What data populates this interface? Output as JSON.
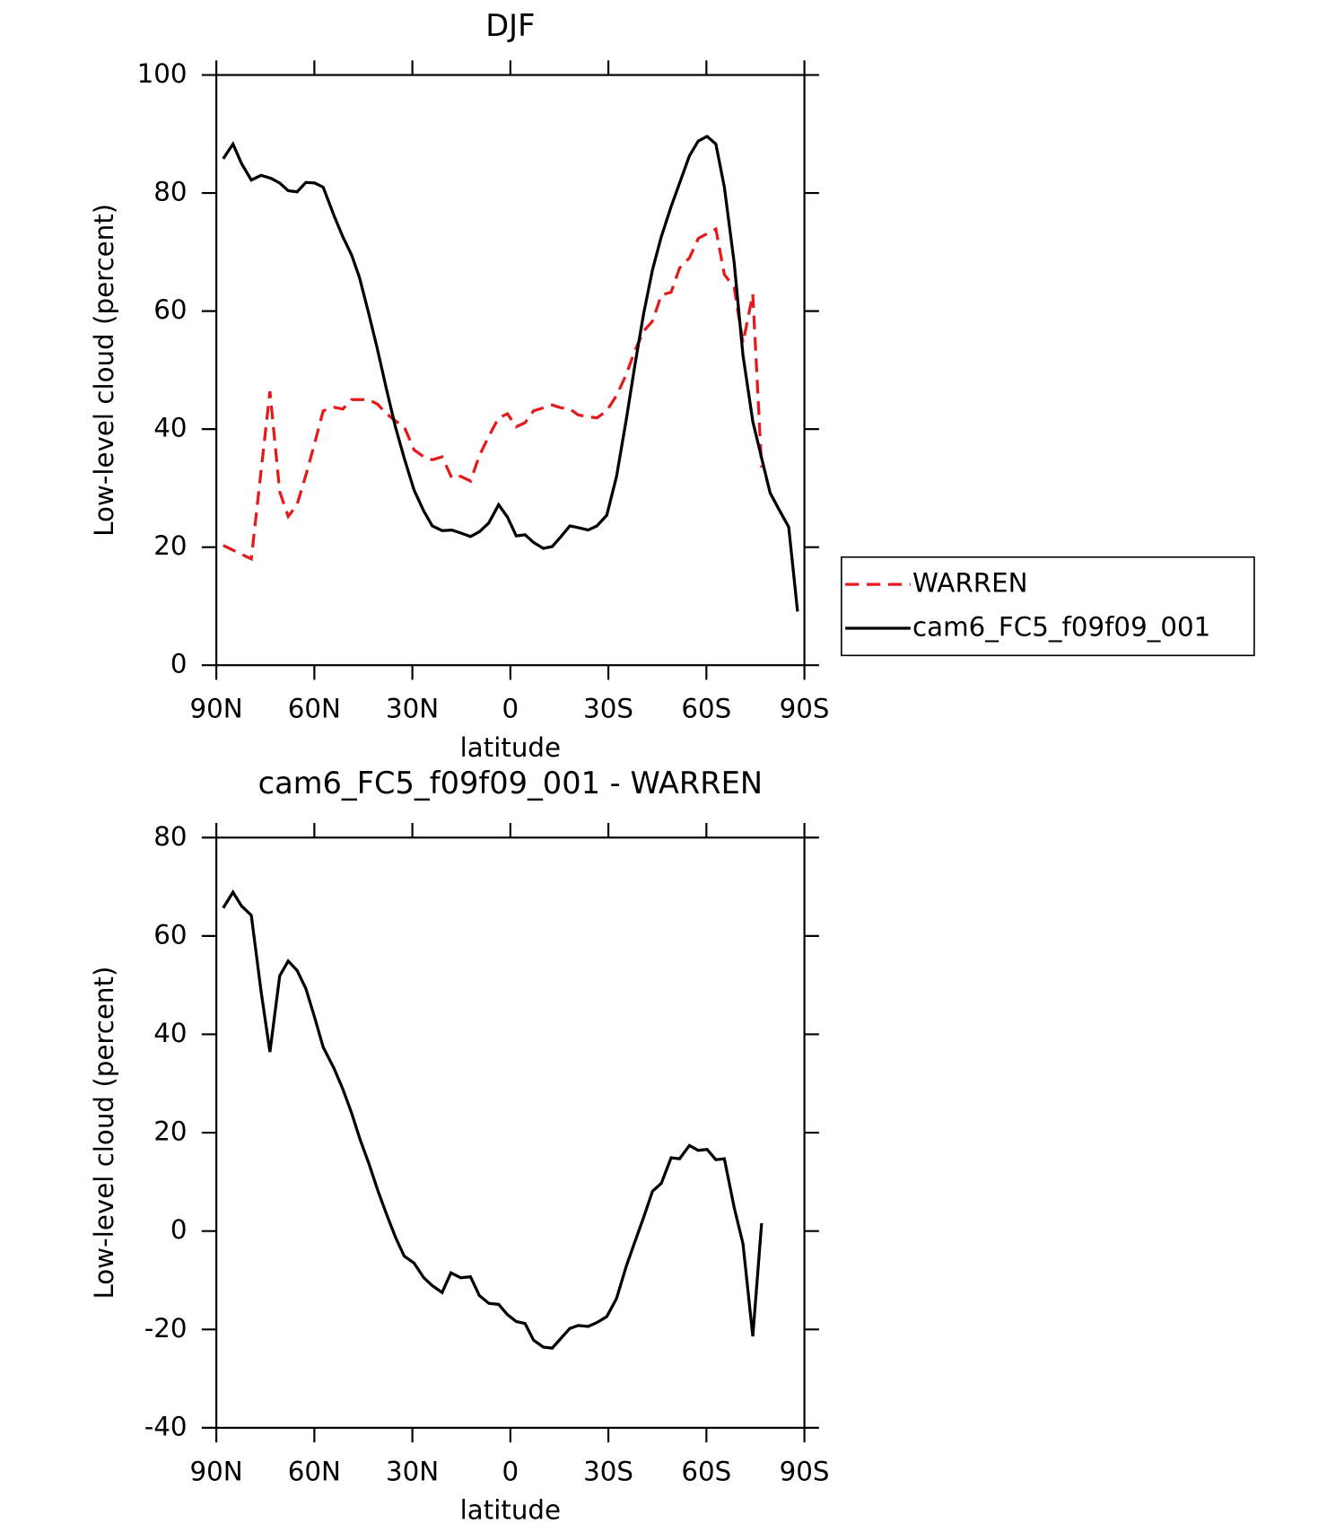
{
  "chart_data": [
    {
      "type": "line",
      "title": "DJF",
      "xlabel": "latitude",
      "ylabel": "Low-level cloud (percent)",
      "xlim": [
        90,
        -90
      ],
      "xticks": [
        {
          "value": 90,
          "label": "90N"
        },
        {
          "value": 60,
          "label": "60N"
        },
        {
          "value": 30,
          "label": "30N"
        },
        0,
        {
          "value": -30,
          "label": "30S"
        },
        {
          "value": -60,
          "label": "60S"
        },
        {
          "value": -90,
          "label": "90S"
        }
      ],
      "ylim": [
        0,
        100
      ],
      "yticks": [
        0,
        20,
        40,
        60,
        80,
        100
      ],
      "legend": "outside right",
      "series": [
        {
          "name": "WARREN",
          "color": "#e41a1c",
          "linestyle": "dashed",
          "x": [
            87.9,
            79.3,
            73.6,
            70.6,
            68.0,
            65.3,
            62.6,
            59.9,
            57.3,
            54.0,
            51.3,
            48.6,
            46.0,
            43.3,
            40.6,
            37.9,
            35.2,
            32.5,
            29.5,
            26.5,
            23.9,
            20.9,
            17.9,
            15.2,
            12.2,
            9.5,
            6.6,
            3.6,
            0.9,
            -1.8,
            -4.5,
            -7.1,
            -10.1,
            -12.8,
            -15.5,
            -18.2,
            -20.8,
            -23.8,
            -26.5,
            -29.5,
            -32.5,
            -35.5,
            -38.1,
            -40.8,
            -43.5,
            -46.2,
            -49.2,
            -51.8,
            -54.8,
            -57.5,
            -60.2,
            -62.9,
            -65.5,
            -68.5,
            -71.2,
            -74.2,
            -76.9
          ],
          "values": [
            20.3,
            18.0,
            46.4,
            29.4,
            25.2,
            27.2,
            32.2,
            37.6,
            43.1,
            43.7,
            43.4,
            45.0,
            45.0,
            45.0,
            44.2,
            42.6,
            41.4,
            40.4,
            36.5,
            35.3,
            34.8,
            35.3,
            31.7,
            32.0,
            31.2,
            35.5,
            38.8,
            41.9,
            42.6,
            40.4,
            41.1,
            43.1,
            43.6,
            44.1,
            43.6,
            43.4,
            42.4,
            42.1,
            41.9,
            43.1,
            45.7,
            49.3,
            53.3,
            56.6,
            58.3,
            62.7,
            63.2,
            67.3,
            69.0,
            72.3,
            73.1,
            73.9,
            66.2,
            64.0,
            54.6,
            62.9,
            33.5
          ]
        },
        {
          "name": "cam6_FC5_f09f09_001",
          "color": "#000000",
          "linestyle": "solid",
          "x": [
            87.9,
            84.9,
            82.3,
            79.3,
            76.3,
            73.3,
            70.6,
            68.0,
            65.3,
            62.6,
            59.9,
            57.3,
            54.0,
            51.3,
            48.6,
            46.2,
            43.5,
            40.8,
            37.9,
            35.2,
            32.5,
            29.5,
            26.5,
            23.9,
            20.9,
            17.9,
            15.2,
            12.2,
            9.5,
            6.6,
            3.6,
            0.9,
            -1.8,
            -4.5,
            -7.1,
            -10.1,
            -12.8,
            -15.5,
            -18.2,
            -20.8,
            -23.8,
            -26.5,
            -29.5,
            -32.5,
            -35.5,
            -38.1,
            -40.8,
            -43.5,
            -46.2,
            -49.2,
            -51.8,
            -54.8,
            -57.5,
            -60.2,
            -62.9,
            -65.5,
            -68.5,
            -71.2,
            -74.2,
            -76.9,
            -79.5,
            -82.2,
            -85.2,
            -87.9
          ],
          "values": [
            85.8,
            88.3,
            85.0,
            82.2,
            83.0,
            82.5,
            81.7,
            80.4,
            80.2,
            81.8,
            81.7,
            81.0,
            76.2,
            72.6,
            69.5,
            65.7,
            59.9,
            53.8,
            46.7,
            40.4,
            35.1,
            29.7,
            26.1,
            23.6,
            22.8,
            22.9,
            22.4,
            21.8,
            22.6,
            24.1,
            27.2,
            25.1,
            21.9,
            22.1,
            20.8,
            19.8,
            20.1,
            21.8,
            23.6,
            23.3,
            22.9,
            23.6,
            25.4,
            32.0,
            41.7,
            50.8,
            59.6,
            67.0,
            72.6,
            77.7,
            81.7,
            86.3,
            88.8,
            89.6,
            88.3,
            81.0,
            68.2,
            52.5,
            41.3,
            35.1,
            29.2,
            26.4,
            23.4,
            9.1
          ]
        }
      ]
    },
    {
      "type": "line",
      "title": "cam6_FC5_f09f09_001 - WARREN",
      "xlabel": "latitude",
      "ylabel": "Low-level cloud (percent)",
      "xlim": [
        90,
        -90
      ],
      "xticks": [
        {
          "value": 90,
          "label": "90N"
        },
        {
          "value": 60,
          "label": "60N"
        },
        {
          "value": 30,
          "label": "30N"
        },
        0,
        {
          "value": -30,
          "label": "30S"
        },
        {
          "value": -60,
          "label": "60S"
        },
        {
          "value": -90,
          "label": "90S"
        }
      ],
      "ylim": [
        -40,
        80
      ],
      "yticks": [
        -40,
        -20,
        0,
        20,
        40,
        60,
        80
      ],
      "series": [
        {
          "color": "#000000",
          "linestyle": "solid",
          "x": [
            87.9,
            84.9,
            82.3,
            79.3,
            76.3,
            73.6,
            70.6,
            68.0,
            65.3,
            62.6,
            59.9,
            57.3,
            54.0,
            51.3,
            48.6,
            46.0,
            43.3,
            40.6,
            37.9,
            35.2,
            32.5,
            29.5,
            26.5,
            23.9,
            20.9,
            18.2,
            15.2,
            12.2,
            9.5,
            6.6,
            3.6,
            0.9,
            -1.8,
            -4.5,
            -7.1,
            -10.1,
            -12.8,
            -15.5,
            -18.2,
            -20.8,
            -23.8,
            -26.5,
            -29.5,
            -32.5,
            -35.5,
            -38.1,
            -40.8,
            -43.5,
            -46.2,
            -49.2,
            -51.8,
            -54.8,
            -57.5,
            -60.2,
            -62.9,
            -65.5,
            -68.5,
            -71.2,
            -74.2,
            -76.9
          ],
          "values": [
            65.7,
            68.9,
            66.1,
            64.2,
            48.7,
            36.4,
            51.9,
            54.9,
            53.0,
            49.3,
            43.4,
            37.4,
            33.1,
            28.9,
            24.0,
            18.6,
            13.7,
            8.3,
            3.4,
            -1.2,
            -5.1,
            -6.5,
            -9.5,
            -11.1,
            -12.5,
            -8.5,
            -9.5,
            -9.3,
            -13.1,
            -14.7,
            -14.9,
            -17.0,
            -18.4,
            -18.8,
            -22.2,
            -23.6,
            -23.8,
            -21.8,
            -19.8,
            -19.2,
            -19.4,
            -18.6,
            -17.4,
            -13.7,
            -7.1,
            -2.2,
            2.8,
            8.1,
            9.7,
            14.9,
            14.7,
            17.4,
            16.4,
            16.6,
            14.5,
            14.7,
            4.8,
            -2.6,
            -21.4,
            1.6
          ]
        }
      ]
    }
  ]
}
